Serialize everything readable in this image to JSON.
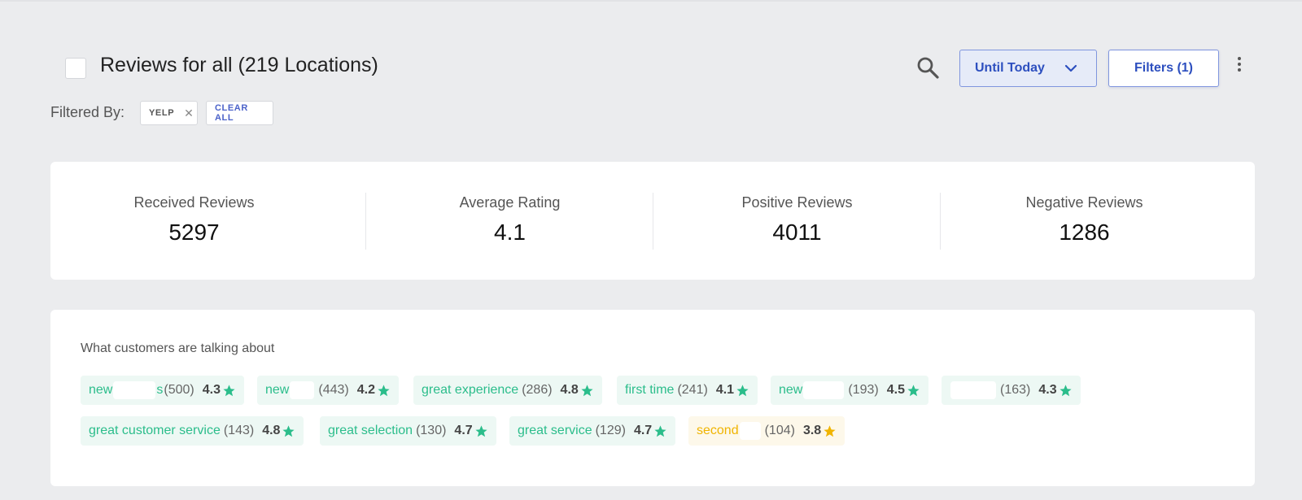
{
  "header": {
    "title": "Reviews for all (219 Locations)",
    "date_filter_label": "Until Today",
    "filters_label": "Filters (1)"
  },
  "filters": {
    "label": "Filtered By:",
    "chips": [
      {
        "label": "YELP"
      }
    ],
    "clear_all_label": "CLEAR ALL"
  },
  "stats": [
    {
      "label": "Received Reviews",
      "value": "5297"
    },
    {
      "label": "Average Rating",
      "value": "4.1"
    },
    {
      "label": "Positive Reviews",
      "value": "4011"
    },
    {
      "label": "Negative Reviews",
      "value": "1286"
    }
  ],
  "topics": {
    "title": "What customers are talking about",
    "items": [
      {
        "term": "new",
        "tail": "s",
        "count": "(500)",
        "rating": "4.3",
        "sentiment": "positive"
      },
      {
        "term": "new",
        "tail": "",
        "count": "(443)",
        "rating": "4.2",
        "sentiment": "positive"
      },
      {
        "term": "great experience",
        "tail": "",
        "count": "(286)",
        "rating": "4.8",
        "sentiment": "positive"
      },
      {
        "term": "first time",
        "tail": "",
        "count": "(241)",
        "rating": "4.1",
        "sentiment": "positive"
      },
      {
        "term": "new",
        "tail": "",
        "count": "(193)",
        "rating": "4.5",
        "sentiment": "positive"
      },
      {
        "term": "",
        "tail": "",
        "count": "(163)",
        "rating": "4.3",
        "sentiment": "positive"
      },
      {
        "term": "great customer service",
        "tail": "",
        "count": "(143)",
        "rating": "4.8",
        "sentiment": "positive"
      },
      {
        "term": "great selection",
        "tail": "",
        "count": "(130)",
        "rating": "4.7",
        "sentiment": "positive"
      },
      {
        "term": "great service",
        "tail": "",
        "count": "(129)",
        "rating": "4.7",
        "sentiment": "positive"
      },
      {
        "term": "second",
        "tail": "",
        "count": "(104)",
        "rating": "3.8",
        "sentiment": "neutral"
      }
    ]
  },
  "colors": {
    "accent": "#2d4fbf",
    "positive": "#2bbd8b",
    "neutral": "#f0b400"
  },
  "icons": [
    "search-icon",
    "chevron-down-icon",
    "more-vertical-icon",
    "close-icon",
    "star-icon"
  ]
}
